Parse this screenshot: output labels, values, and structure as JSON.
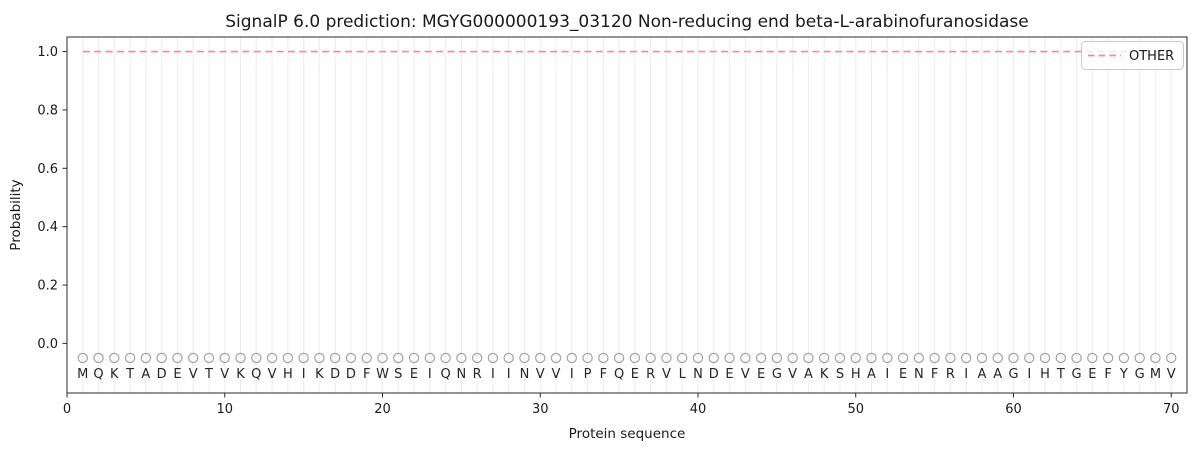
{
  "chart_data": {
    "type": "line",
    "title": "SignalP 6.0 prediction: MGYG000000193_03120 Non-reducing end beta-L-arabinofuranosidase",
    "xlabel": "Protein sequence",
    "ylabel": "Probability",
    "xlim": [
      0,
      71
    ],
    "ylim": [
      -0.17,
      1.05
    ],
    "x_ticks": [
      0,
      10,
      20,
      30,
      40,
      50,
      60,
      70
    ],
    "y_ticks": [
      0.0,
      0.2,
      0.4,
      0.6,
      0.8,
      1.0
    ],
    "grid": {
      "vertical_per_residue": true,
      "horizontal": false,
      "color": "#efefef"
    },
    "sequence": "MQKTADEVTVKQVHIKDDFWSEIQNRIINVVIPFQERVLNDEVEGVAKSHAIENFRIAAGIHTGEFYGMV",
    "sequence_start_position": 1,
    "marker_row": {
      "y": -0.05,
      "shape": "open-circle",
      "color": "#a3a3a3"
    },
    "series": [
      {
        "name": "OTHER",
        "linestyle": "dashed",
        "color": "#f58b8b",
        "x_start": 1,
        "values": [
          1,
          1,
          1,
          1,
          1,
          1,
          1,
          1,
          1,
          1,
          1,
          1,
          1,
          1,
          1,
          1,
          1,
          1,
          1,
          1,
          1,
          1,
          1,
          1,
          1,
          1,
          1,
          1,
          1,
          1,
          1,
          1,
          1,
          1,
          1,
          1,
          1,
          1,
          1,
          1,
          1,
          1,
          1,
          1,
          1,
          1,
          1,
          1,
          1,
          1,
          1,
          1,
          1,
          1,
          1,
          1,
          1,
          1,
          1,
          1,
          1,
          1,
          1,
          1,
          1,
          1,
          1,
          1,
          1,
          1
        ]
      }
    ],
    "legend": {
      "position": "upper-right",
      "entries": [
        {
          "label": "OTHER",
          "color": "#f58b8b",
          "linestyle": "dashed"
        }
      ]
    },
    "colors": {
      "spine": "#2b2b2b",
      "tick": "#2b2b2b",
      "legend_border": "#c9c9c9",
      "legend_bg": "rgba(255,255,255,0.8)"
    }
  }
}
